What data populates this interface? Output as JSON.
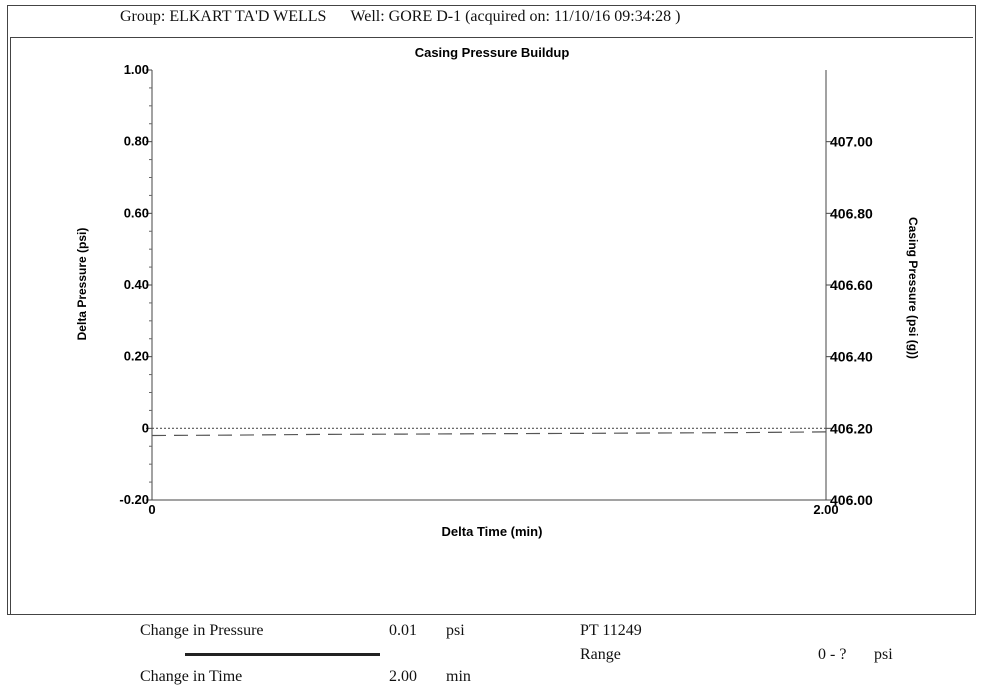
{
  "header": {
    "group": "Group: ELKART TA'D WELLS",
    "well": "Well: GORE D-1 (acquired on: 11/10/16 09:34:28 )"
  },
  "chart_data": {
    "type": "line",
    "title": "Casing Pressure Buildup",
    "xlabel": "Delta Time (min)",
    "ylabel": "Delta Pressure (psi)",
    "y2label": "Casing Pressure (psi (g))",
    "xlim": [
      0,
      2.0
    ],
    "ylim": [
      -0.2,
      1.0
    ],
    "y2lim": [
      406.0,
      407.2
    ],
    "x_ticks": [
      "0",
      "2.00"
    ],
    "y_ticks": [
      {
        "value": 1.0,
        "label": "1.00"
      },
      {
        "value": 0.8,
        "label": "0.80"
      },
      {
        "value": 0.6,
        "label": "0.60"
      },
      {
        "value": 0.4,
        "label": "0.40"
      },
      {
        "value": 0.2,
        "label": "0.20"
      },
      {
        "value": 0.0,
        "label": "0"
      },
      {
        "value": -0.2,
        "label": "-0.20"
      }
    ],
    "y2_ticks": [
      {
        "value": 407.0,
        "label": "407.00"
      },
      {
        "value": 406.8,
        "label": "406.80"
      },
      {
        "value": 406.6,
        "label": "406.60"
      },
      {
        "value": 406.4,
        "label": "406.40"
      },
      {
        "value": 406.2,
        "label": "406.20"
      },
      {
        "value": 406.0,
        "label": "406.00"
      }
    ],
    "series": [
      {
        "axis": "left",
        "style": "dotted",
        "x": [
          0,
          0.25,
          0.5,
          0.75,
          1.0,
          1.25,
          1.5,
          1.75,
          2.0
        ],
        "values": [
          0,
          0,
          0,
          0,
          0,
          0,
          0,
          0,
          0
        ]
      },
      {
        "axis": "right",
        "style": "dashed",
        "x": [
          0,
          0.25,
          0.5,
          0.75,
          1.0,
          1.25,
          1.5,
          1.75,
          2.0
        ],
        "values": [
          406.18,
          406.181,
          406.183,
          406.184,
          406.185,
          406.186,
          406.187,
          406.188,
          406.19
        ]
      }
    ],
    "grid": false
  },
  "footer": {
    "change_pressure_label": "Change in Pressure",
    "change_pressure_value": "0.01",
    "change_pressure_unit": "psi",
    "change_time_label": "Change in Time",
    "change_time_value": "2.00",
    "change_time_unit": "min",
    "pt_label": "PT 11249",
    "range_label": "Range",
    "range_value": "0 - ?",
    "range_unit": "psi"
  }
}
